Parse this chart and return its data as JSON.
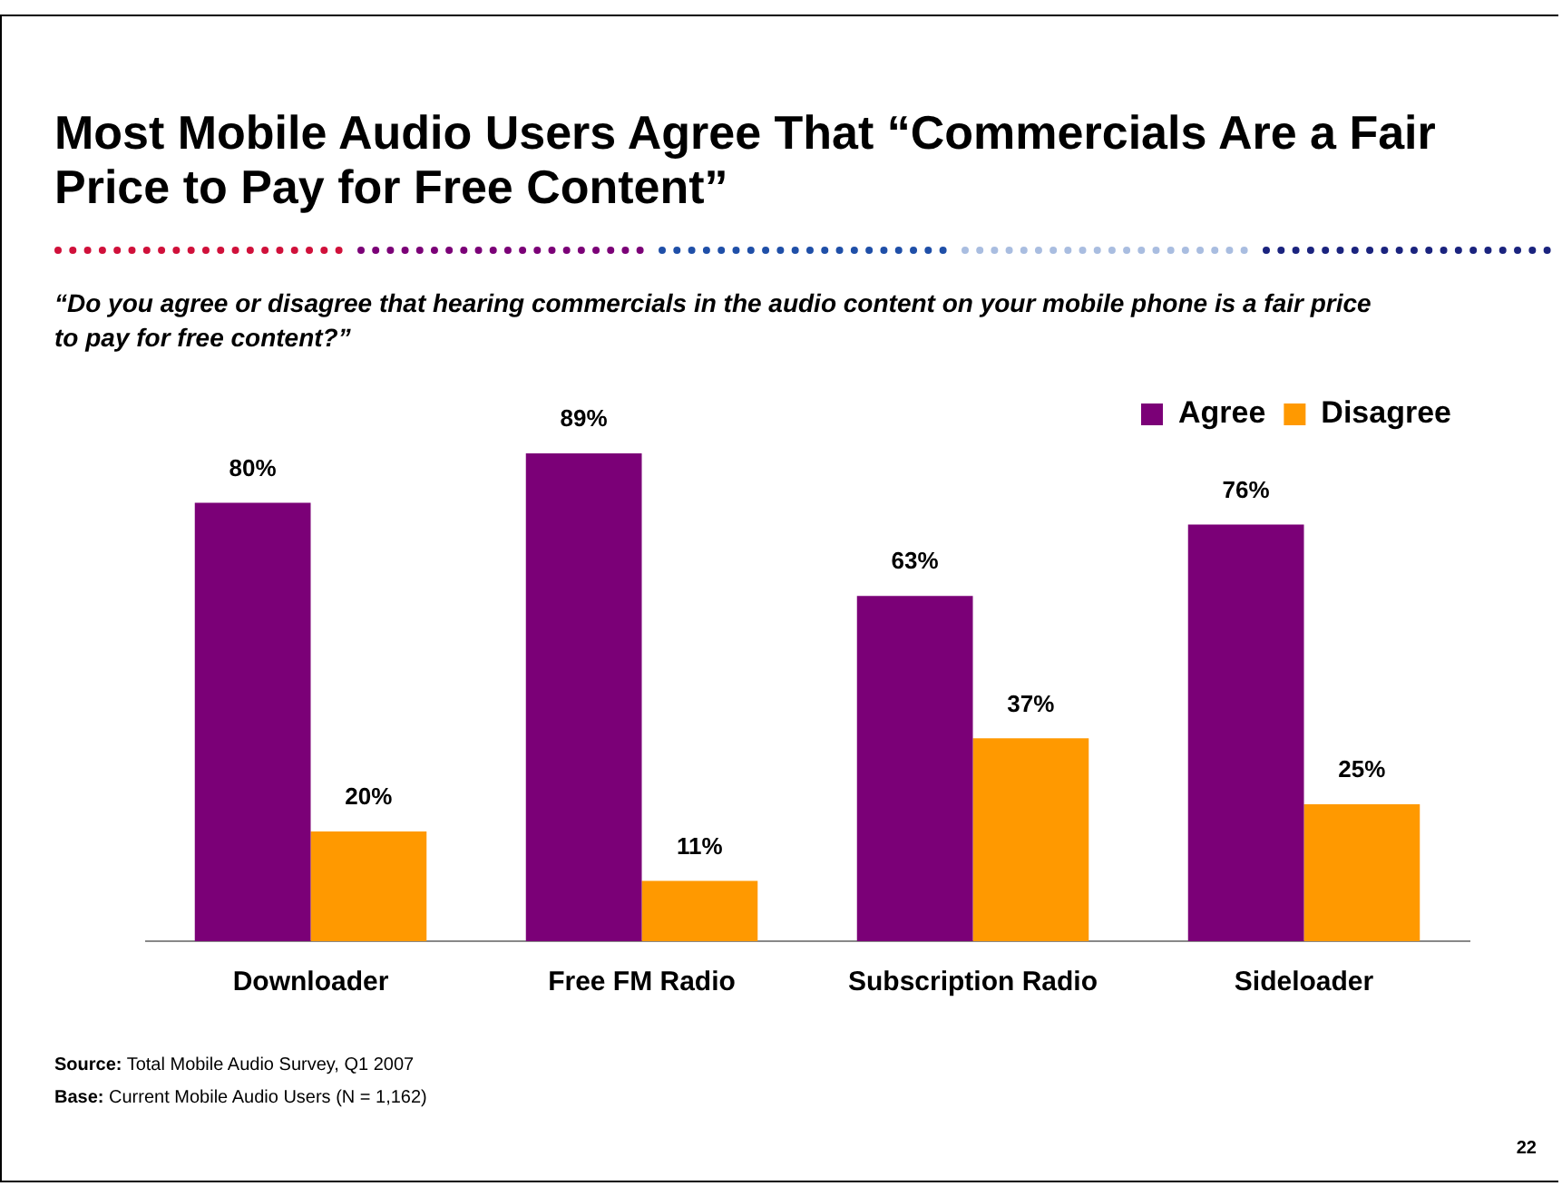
{
  "chart_data": {
    "type": "bar",
    "title": "Most Mobile Audio Users Agree That  “Commercials Are a Fair Price to Pay for Free Content”",
    "subtitle": "“Do you agree or disagree that hearing commercials in the audio content on your mobile phone is a fair price to pay for free content?”",
    "categories": [
      "Downloader",
      "Free FM Radio",
      "Subscription Radio",
      "Sideloader"
    ],
    "series": [
      {
        "name": "Agree",
        "color": "#7b0077",
        "values": [
          80,
          89,
          63,
          76
        ],
        "value_labels": [
          "80%",
          "89%",
          "63%",
          "76%"
        ]
      },
      {
        "name": "Disagree",
        "color": "#ff9900",
        "values": [
          20,
          11,
          37,
          25
        ],
        "value_labels": [
          "20%",
          "11%",
          "37%",
          "25%"
        ]
      }
    ],
    "grid": false,
    "legend": "top right",
    "annotations": [
      "Source:  Total Mobile Audio Survey,  Q1 2007",
      "Base:  Current Mobile Audio Users (N = 1,162)",
      "22"
    ]
  }
}
